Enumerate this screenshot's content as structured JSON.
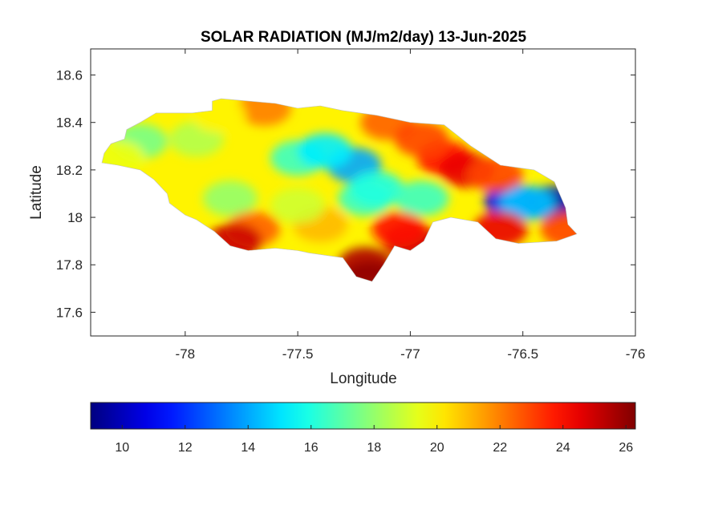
{
  "chart_data": {
    "type": "heatmap",
    "title": "SOLAR RADIATION (MJ/m2/day) 13-Jun-2025",
    "xlabel": "Longitude",
    "ylabel": "Latitude",
    "xlim": [
      -78.42,
      -76.0
    ],
    "ylim": [
      17.5,
      18.71
    ],
    "x_ticks": [
      -78,
      -77.5,
      -77,
      -76.5,
      -76
    ],
    "x_tick_labels": [
      "-78",
      "-77.5",
      "-77",
      "-76.5",
      "-76"
    ],
    "y_ticks": [
      17.6,
      17.8,
      18,
      18.2,
      18.4,
      18.6
    ],
    "y_tick_labels": [
      "17.6",
      "17.8",
      "18",
      "18.2",
      "18.4",
      "18.6"
    ],
    "colormap": "jet",
    "colorbar": {
      "range": [
        9.0,
        26.3
      ],
      "ticks": [
        10,
        12,
        14,
        16,
        18,
        20,
        22,
        24,
        26
      ],
      "tick_labels": [
        "10",
        "12",
        "14",
        "16",
        "18",
        "20",
        "22",
        "24",
        "26"
      ]
    },
    "outline": [
      [
        -78.36,
        18.27
      ],
      [
        -78.33,
        18.31
      ],
      [
        -78.27,
        18.33
      ],
      [
        -78.26,
        18.37
      ],
      [
        -78.2,
        18.4
      ],
      [
        -78.13,
        18.44
      ],
      [
        -77.97,
        18.44
      ],
      [
        -77.88,
        18.45
      ],
      [
        -77.88,
        18.49
      ],
      [
        -77.84,
        18.5
      ],
      [
        -77.6,
        18.48
      ],
      [
        -77.5,
        18.46
      ],
      [
        -77.4,
        18.47
      ],
      [
        -77.3,
        18.45
      ],
      [
        -77.15,
        18.43
      ],
      [
        -77.0,
        18.4
      ],
      [
        -76.85,
        18.39
      ],
      [
        -76.73,
        18.3
      ],
      [
        -76.6,
        18.22
      ],
      [
        -76.45,
        18.2
      ],
      [
        -76.36,
        18.15
      ],
      [
        -76.31,
        18.04
      ],
      [
        -76.3,
        17.97
      ],
      [
        -76.26,
        17.93
      ],
      [
        -76.35,
        17.9
      ],
      [
        -76.52,
        17.89
      ],
      [
        -76.62,
        17.91
      ],
      [
        -76.7,
        17.98
      ],
      [
        -76.82,
        18.0
      ],
      [
        -76.9,
        17.98
      ],
      [
        -76.94,
        17.9
      ],
      [
        -77.0,
        17.86
      ],
      [
        -77.07,
        17.88
      ],
      [
        -77.12,
        17.8
      ],
      [
        -77.17,
        17.73
      ],
      [
        -77.24,
        17.75
      ],
      [
        -77.3,
        17.83
      ],
      [
        -77.45,
        17.85
      ],
      [
        -77.5,
        17.86
      ],
      [
        -77.6,
        17.87
      ],
      [
        -77.72,
        17.86
      ],
      [
        -77.8,
        17.88
      ],
      [
        -77.87,
        17.94
      ],
      [
        -77.95,
        17.99
      ],
      [
        -78.0,
        18.01
      ],
      [
        -78.07,
        18.06
      ],
      [
        -78.08,
        18.1
      ],
      [
        -78.14,
        18.16
      ],
      [
        -78.2,
        18.2
      ],
      [
        -78.3,
        18.22
      ],
      [
        -78.37,
        18.23
      ]
    ],
    "field_features": [
      {
        "lon": -77.2,
        "lat": 18.08,
        "value": 16.5
      },
      {
        "lon": -77.5,
        "lat": 18.25,
        "value": 16.5
      },
      {
        "lon": -77.25,
        "lat": 18.22,
        "value": 14.0
      },
      {
        "lon": -77.38,
        "lat": 18.28,
        "value": 15.2
      },
      {
        "lon": -77.15,
        "lat": 18.12,
        "value": 16.0
      },
      {
        "lon": -76.95,
        "lat": 18.08,
        "value": 16.5
      },
      {
        "lon": -76.55,
        "lat": 18.07,
        "value": 11.0
      },
      {
        "lon": -76.37,
        "lat": 18.06,
        "value": 10.0
      },
      {
        "lon": -76.48,
        "lat": 18.06,
        "value": 14.5
      },
      {
        "lon": -78.2,
        "lat": 18.32,
        "value": 17.5
      },
      {
        "lon": -77.95,
        "lat": 18.33,
        "value": 18.5
      },
      {
        "lon": -77.8,
        "lat": 18.08,
        "value": 18.0
      },
      {
        "lon": -77.7,
        "lat": 17.95,
        "value": 22.5
      },
      {
        "lon": -77.78,
        "lat": 17.9,
        "value": 25.0
      },
      {
        "lon": -77.2,
        "lat": 17.8,
        "value": 25.5
      },
      {
        "lon": -77.18,
        "lat": 17.74,
        "value": 26.0
      },
      {
        "lon": -77.0,
        "lat": 17.9,
        "value": 25.0
      },
      {
        "lon": -77.05,
        "lat": 17.95,
        "value": 24.0
      },
      {
        "lon": -76.85,
        "lat": 18.25,
        "value": 24.0
      },
      {
        "lon": -76.75,
        "lat": 18.2,
        "value": 24.5
      },
      {
        "lon": -76.62,
        "lat": 18.18,
        "value": 23.0
      },
      {
        "lon": -76.6,
        "lat": 17.95,
        "value": 24.5
      },
      {
        "lon": -76.3,
        "lat": 17.95,
        "value": 23.0
      },
      {
        "lon": -77.65,
        "lat": 18.46,
        "value": 22.0
      },
      {
        "lon": -77.1,
        "lat": 18.4,
        "value": 22.5
      },
      {
        "lon": -76.95,
        "lat": 18.33,
        "value": 23.0
      },
      {
        "lon": -77.4,
        "lat": 17.97,
        "value": 21.0
      },
      {
        "lon": -77.5,
        "lat": 18.05,
        "value": 19.0
      },
      {
        "lon": -78.3,
        "lat": 18.25,
        "value": 19.5
      },
      {
        "lon": -77.85,
        "lat": 18.43,
        "value": 20.0
      }
    ]
  }
}
